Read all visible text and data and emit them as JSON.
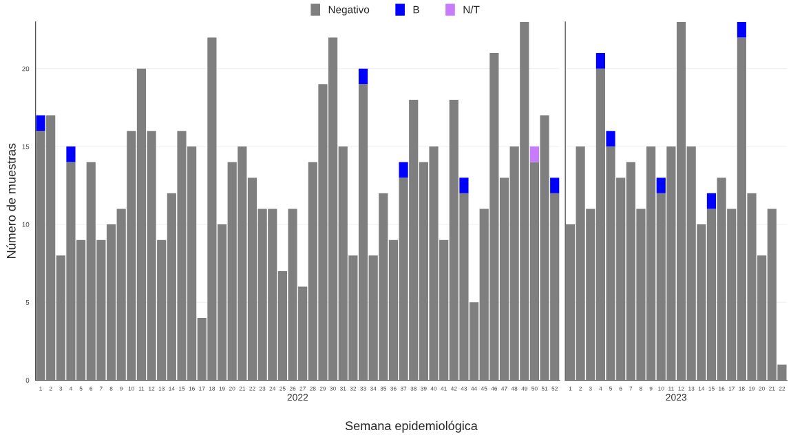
{
  "chart_data": [
    {
      "type": "bar",
      "stacked": true,
      "xlabel": "2022",
      "ylabel": "Número de muestras",
      "annotations": [
        "Semana epidemiológica"
      ],
      "categories": [
        "1",
        "2",
        "3",
        "4",
        "5",
        "6",
        "7",
        "8",
        "9",
        "10",
        "11",
        "12",
        "13",
        "14",
        "15",
        "16",
        "17",
        "18",
        "19",
        "20",
        "21",
        "22",
        "23",
        "24",
        "25",
        "26",
        "27",
        "28",
        "29",
        "30",
        "31",
        "32",
        "33",
        "34",
        "35",
        "36",
        "37",
        "38",
        "39",
        "40",
        "41",
        "42",
        "43",
        "44",
        "45",
        "46",
        "47",
        "48",
        "49",
        "50",
        "51",
        "52"
      ],
      "series": [
        {
          "name": "Negativo",
          "color": "#7f7f7f",
          "values": [
            16,
            17,
            8,
            14,
            9,
            14,
            9,
            10,
            11,
            16,
            20,
            16,
            9,
            12,
            16,
            15,
            4,
            22,
            10,
            14,
            15,
            13,
            11,
            11,
            7,
            11,
            6,
            14,
            19,
            22,
            15,
            8,
            19,
            8,
            12,
            9,
            13,
            18,
            14,
            15,
            9,
            18,
            12,
            5,
            11,
            21,
            13,
            15,
            23,
            14,
            17,
            12
          ]
        },
        {
          "name": "B",
          "color": "#0000ff",
          "values": [
            1,
            0,
            0,
            1,
            0,
            0,
            0,
            0,
            0,
            0,
            0,
            0,
            0,
            0,
            0,
            0,
            0,
            0,
            0,
            0,
            0,
            0,
            0,
            0,
            0,
            0,
            0,
            0,
            0,
            0,
            0,
            0,
            1,
            0,
            0,
            0,
            1,
            0,
            0,
            0,
            0,
            0,
            1,
            0,
            0,
            0,
            0,
            0,
            0,
            0,
            0,
            1
          ]
        },
        {
          "name": "N/T",
          "color": "#c77cff",
          "values": [
            0,
            0,
            0,
            0,
            0,
            0,
            0,
            0,
            0,
            0,
            0,
            0,
            0,
            0,
            0,
            0,
            0,
            0,
            0,
            0,
            0,
            0,
            0,
            0,
            0,
            0,
            0,
            0,
            0,
            0,
            0,
            0,
            0,
            0,
            0,
            0,
            0,
            0,
            0,
            0,
            0,
            0,
            0,
            0,
            0,
            0,
            0,
            0,
            0,
            1,
            0,
            0
          ]
        }
      ],
      "ylim": [
        0,
        23
      ],
      "yticks": [
        0,
        5,
        10,
        15,
        20
      ],
      "grid": "y",
      "legend": "top"
    },
    {
      "type": "bar",
      "stacked": true,
      "xlabel": "2023",
      "tick_labels": "x",
      "categories": [
        "1",
        "2",
        "3",
        "4",
        "5",
        "6",
        "7",
        "8",
        "9",
        "10",
        "11",
        "12",
        "13",
        "14",
        "15",
        "16",
        "17",
        "18",
        "19",
        "20",
        "21",
        "22"
      ],
      "series": [
        {
          "color": "#7f7f7f",
          "values": [
            10,
            15,
            11,
            20,
            15,
            13,
            14,
            11,
            15,
            12,
            15,
            23,
            15,
            10,
            11,
            13,
            11,
            22,
            12,
            8,
            11,
            1
          ]
        },
        {
          "color": "#0000ff",
          "values": [
            0,
            0,
            0,
            1,
            1,
            0,
            0,
            0,
            0,
            1,
            0,
            0,
            0,
            0,
            1,
            0,
            0,
            1,
            0,
            0,
            0,
            0
          ]
        }
      ],
      "ylim": [
        0,
        23
      ],
      "yticks": [
        0,
        5,
        10,
        15,
        20
      ],
      "grid": "y"
    }
  ]
}
